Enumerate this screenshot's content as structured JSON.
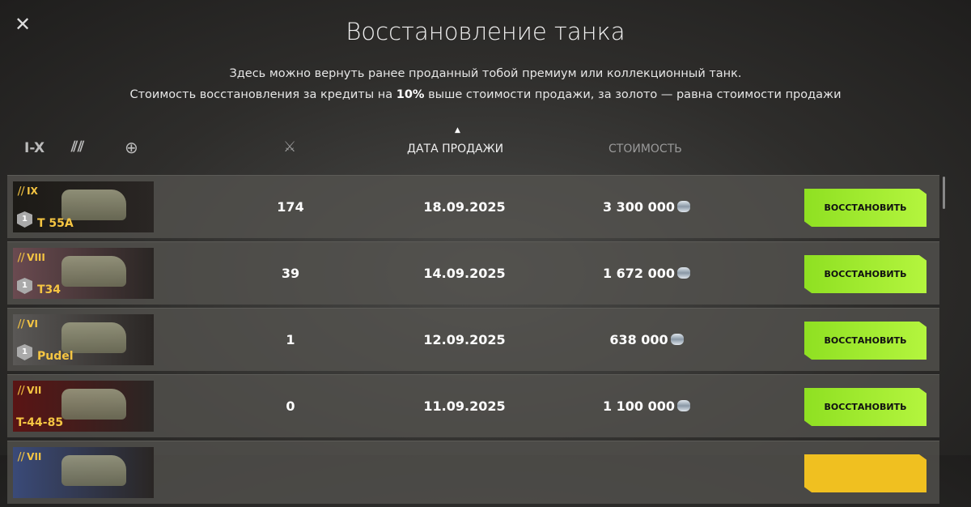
{
  "title": "Восстановление танка",
  "subtitle_line1": "Здесь можно вернуть ранее проданный тобой премиум или коллекционный танк.",
  "subtitle_line2_a": "Стоимость восстановления за кредиты на ",
  "subtitle_line2_b": "10%",
  "subtitle_line2_c": " выше стоимости продажи, за золото — равна стоимости продажи",
  "filters": {
    "tier": "I-X",
    "class_icon": "tank-class-icon",
    "nation_icon": "globe-icon"
  },
  "columns": {
    "battles_icon": "crossed-swords-icon",
    "sale_date": "ДАТА ПРОДАЖИ",
    "cost": "СТОИМОСТЬ",
    "sort": "ascending"
  },
  "accent": "#a6ef32",
  "rows": [
    {
      "tier": "IX",
      "name": "T 55A",
      "mastery": "1",
      "battles": "174",
      "date": "18.09.2025",
      "cost": "3 300 000",
      "button": "ВОССТАНОВИТЬ",
      "bg": "#1c1a16"
    },
    {
      "tier": "VIII",
      "name": "T34",
      "mastery": "1",
      "battles": "39",
      "date": "14.09.2025",
      "cost": "1 672 000",
      "button": "ВОССТАНОВИТЬ",
      "bg": "#6a4a50"
    },
    {
      "tier": "VI",
      "name": "Pudel",
      "mastery": "1",
      "battles": "1",
      "date": "12.09.2025",
      "cost": "638 000",
      "button": "ВОССТАНОВИТЬ",
      "bg": "#5a5856"
    },
    {
      "tier": "VII",
      "name": "T-44-85",
      "mastery": "",
      "battles": "0",
      "date": "11.09.2025",
      "cost": "1 100 000",
      "button": "ВОССТАНОВИТЬ",
      "bg": "#5a1414"
    },
    {
      "tier": "VII",
      "name": "",
      "mastery": "",
      "battles": "",
      "date": "",
      "cost": "",
      "button": "",
      "bg": "#3a4a78"
    }
  ]
}
